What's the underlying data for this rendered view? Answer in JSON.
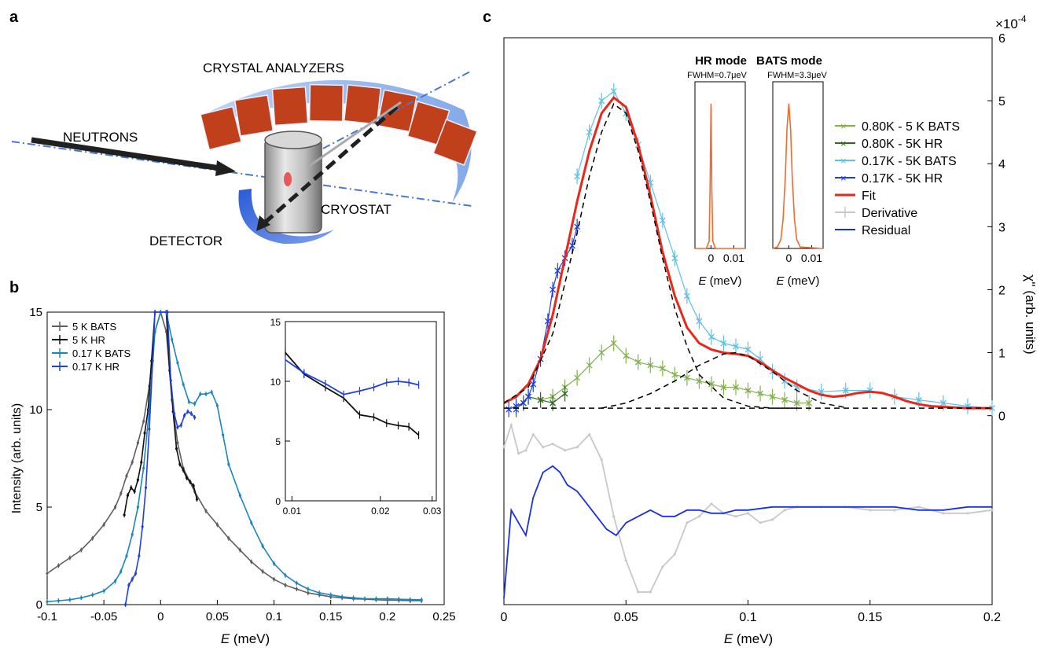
{
  "panel_labels": {
    "a": "a",
    "b": "b",
    "c": "c"
  },
  "schematic": {
    "crystal_analyzers": "CRYSTAL ANALYZERS",
    "neutrons": "NEUTRONS",
    "cryostat": "CRYOSTAT",
    "detector": "DETECTOR"
  },
  "colors": {
    "gray_bats": "#5f5f5f",
    "black_hr": "#111111",
    "blue_bats_b": "#1a86c0",
    "blue_hr": "#1f3fe0",
    "green_bats": "#7fb24a",
    "green_hr": "#2f6b1f",
    "cyan_bats": "#5ec0e6",
    "fit_red": "#e8281a",
    "derivative_gray": "#c8c8c8",
    "residual_blue": "#1a2ee6",
    "orange_res": "#f26a2e",
    "crystal": "#c0401b"
  },
  "chart_data": [
    {
      "id": "b",
      "type": "line",
      "xlabel_italic": "E",
      "xlabel_rest": " (meV)",
      "ylabel": "Intensity (arb. units)",
      "xlim": [
        -0.1,
        0.25
      ],
      "ylim": [
        0,
        15
      ],
      "xticks": [
        -0.1,
        -0.05,
        0,
        0.05,
        0.1,
        0.15,
        0.2,
        0.25
      ],
      "xtick_labels": [
        "-0.1",
        "-0.05",
        "0",
        "0.05",
        "0.1",
        "0.15",
        "0.2",
        "0.25"
      ],
      "yticks": [
        0,
        5,
        10,
        15
      ],
      "ytick_labels": [
        "0",
        "5",
        "10",
        "15"
      ],
      "legend": "top-left",
      "series": [
        {
          "name": "5 K BATS",
          "color": "#5f5f5f",
          "x": [
            -0.1,
            -0.09,
            -0.08,
            -0.07,
            -0.06,
            -0.05,
            -0.04,
            -0.035,
            -0.03,
            -0.025,
            -0.02,
            -0.015,
            -0.01,
            -0.005,
            0.0,
            0.005,
            0.01,
            0.015,
            0.02,
            0.03,
            0.04,
            0.05,
            0.06,
            0.07,
            0.08,
            0.09,
            0.1,
            0.11,
            0.12,
            0.13,
            0.14,
            0.15,
            0.16,
            0.17,
            0.18,
            0.19,
            0.2,
            0.21,
            0.22,
            0.23
          ],
          "y": [
            1.6,
            2.0,
            2.4,
            2.8,
            3.4,
            4.1,
            5.0,
            5.7,
            6.6,
            7.3,
            8.3,
            9.4,
            11.2,
            14.0,
            15,
            14.0,
            10.5,
            8.3,
            7.0,
            5.8,
            4.8,
            4.1,
            3.4,
            2.8,
            2.2,
            1.7,
            1.3,
            1.0,
            0.8,
            0.6,
            0.5,
            0.4,
            0.35,
            0.3,
            0.28,
            0.25,
            0.23,
            0.22,
            0.2,
            0.2
          ]
        },
        {
          "name": "5 K HR",
          "color": "#111111",
          "x": [
            -0.032,
            -0.029,
            -0.026,
            -0.023,
            -0.02,
            -0.017,
            -0.014,
            -0.011,
            -0.008,
            -0.005,
            0.005,
            0.008,
            0.011,
            0.014,
            0.017,
            0.02,
            0.023,
            0.026,
            0.029,
            0.032
          ],
          "y": [
            4.6,
            5.6,
            6.0,
            5.8,
            6.4,
            7.3,
            8.8,
            10.0,
            12.5,
            15,
            15,
            12.0,
            9.9,
            8.0,
            7.2,
            6.9,
            6.5,
            6.3,
            6.1,
            5.4
          ]
        },
        {
          "name": "0.17 K BATS",
          "color": "#1a86c0",
          "x": [
            -0.1,
            -0.09,
            -0.08,
            -0.07,
            -0.06,
            -0.05,
            -0.04,
            -0.035,
            -0.03,
            -0.025,
            -0.02,
            -0.015,
            -0.01,
            -0.005,
            0.0,
            0.005,
            0.01,
            0.015,
            0.02,
            0.025,
            0.03,
            0.035,
            0.04,
            0.045,
            0.05,
            0.055,
            0.06,
            0.07,
            0.08,
            0.09,
            0.1,
            0.11,
            0.12,
            0.13,
            0.14,
            0.15,
            0.16,
            0.17,
            0.18,
            0.19,
            0.2,
            0.21,
            0.22,
            0.23
          ],
          "y": [
            0.15,
            0.2,
            0.25,
            0.35,
            0.5,
            0.7,
            1.2,
            1.7,
            2.5,
            3.6,
            5.0,
            7.0,
            10.0,
            14.0,
            15,
            15,
            13.6,
            12.4,
            11.3,
            10.4,
            10.3,
            10.8,
            10.8,
            10.9,
            10.2,
            8.7,
            7.2,
            5.6,
            4.2,
            3.0,
            2.1,
            1.5,
            1.1,
            0.8,
            0.6,
            0.5,
            0.4,
            0.35,
            0.3,
            0.3,
            0.3,
            0.28,
            0.26,
            0.25
          ]
        },
        {
          "name": "0.17 K HR",
          "color": "#1f3fe0",
          "x": [
            -0.031,
            -0.028,
            -0.025,
            -0.022,
            -0.019,
            -0.016,
            -0.013,
            -0.01,
            -0.007,
            -0.005,
            0.006,
            0.009,
            0.012,
            0.015,
            0.018,
            0.021,
            0.024,
            0.027,
            0.03
          ],
          "y": [
            0.0,
            1.0,
            1.3,
            1.6,
            2.5,
            4.0,
            6.0,
            9.0,
            12.5,
            15,
            15,
            11.5,
            9.8,
            9.1,
            9.2,
            9.7,
            9.9,
            9.8,
            9.6
          ]
        }
      ]
    },
    {
      "id": "b-inset",
      "type": "line",
      "xscale": "log",
      "xlim": [
        0.0095,
        0.031
      ],
      "ylim": [
        0,
        15
      ],
      "xticks": [
        0.01,
        0.02,
        0.03
      ],
      "xtick_labels": [
        "0.01",
        "0.02",
        "0.03"
      ],
      "yticks": [
        0,
        5,
        10,
        15
      ],
      "ytick_labels": [
        "0",
        "5",
        "10",
        "15"
      ],
      "series": [
        {
          "color": "#111111",
          "x": [
            0.0095,
            0.011,
            0.013,
            0.015,
            0.017,
            0.019,
            0.021,
            0.023,
            0.025,
            0.027
          ],
          "y": [
            12.4,
            10.6,
            9.5,
            8.6,
            7.2,
            7.0,
            6.5,
            6.3,
            6.2,
            5.5
          ]
        },
        {
          "color": "#1f3fe0",
          "x": [
            0.0095,
            0.011,
            0.013,
            0.015,
            0.017,
            0.019,
            0.021,
            0.023,
            0.025,
            0.027
          ],
          "y": [
            11.8,
            10.7,
            9.8,
            8.9,
            9.2,
            9.5,
            9.9,
            10.0,
            9.9,
            9.7
          ]
        }
      ]
    },
    {
      "id": "c",
      "type": "line",
      "xlabel_italic": "E",
      "xlabel_rest": " (meV)",
      "ylabel": "χ'' (arb. units)",
      "exponent": "×10",
      "exponent_power": "-4",
      "xlim": [
        0,
        0.2
      ],
      "ylim": [
        -3,
        6
      ],
      "xticks": [
        0,
        0.05,
        0.1,
        0.15,
        0.2
      ],
      "xtick_labels": [
        "0",
        "0.05",
        "0.1",
        "0.15",
        "0.2"
      ],
      "yticks": [
        0,
        1,
        2,
        3,
        4,
        5,
        6
      ],
      "ytick_labels": [
        "0",
        "1",
        "2",
        "3",
        "4",
        "5",
        "6"
      ],
      "legend": "top-right",
      "legend_entries": [
        "0.80K - 5 K BATS",
        "0.80K - 5K HR",
        "0.17K - 5K BATS",
        "0.17K - 5K HR",
        "Fit",
        "Derivative",
        "Residual"
      ],
      "series": [
        {
          "name": "0.80K - 5 K BATS",
          "color": "#7fb24a",
          "x": [
            0.015,
            0.02,
            0.025,
            0.03,
            0.035,
            0.04,
            0.045,
            0.05,
            0.055,
            0.06,
            0.065,
            0.07,
            0.075,
            0.08,
            0.085,
            0.09,
            0.095,
            0.1,
            0.105,
            0.11,
            0.115,
            0.12,
            0.125
          ],
          "y": [
            0.25,
            0.3,
            0.45,
            0.6,
            0.8,
            1.0,
            1.15,
            0.95,
            0.85,
            0.8,
            0.75,
            0.65,
            0.6,
            0.55,
            0.5,
            0.45,
            0.45,
            0.4,
            0.35,
            0.3,
            0.25,
            0.2,
            0.2
          ]
        },
        {
          "name": "0.80K - 5K HR",
          "color": "#2f6b1f",
          "x": [
            0.005,
            0.01,
            0.015,
            0.02,
            0.025
          ],
          "y": [
            0.1,
            0.3,
            0.25,
            0.2,
            0.35
          ]
        },
        {
          "name": "0.17K - 5K BATS",
          "color": "#5ec0e6",
          "x": [
            0.03,
            0.035,
            0.04,
            0.045,
            0.05,
            0.055,
            0.06,
            0.065,
            0.07,
            0.075,
            0.08,
            0.085,
            0.09,
            0.095,
            0.1,
            0.105,
            0.11,
            0.115,
            0.12,
            0.13,
            0.14,
            0.15,
            0.16,
            0.17,
            0.18,
            0.19,
            0.2
          ],
          "y": [
            3.8,
            4.5,
            5.0,
            5.15,
            4.8,
            4.3,
            3.7,
            3.1,
            2.5,
            1.9,
            1.5,
            1.25,
            1.15,
            1.1,
            1.05,
            0.9,
            0.7,
            0.55,
            0.45,
            0.38,
            0.4,
            0.4,
            0.3,
            0.25,
            0.2,
            0.15,
            0.12
          ]
        },
        {
          "name": "0.17K - 5K HR",
          "color": "#1f3fe0",
          "x": [
            0.002,
            0.005,
            0.008,
            0.01,
            0.012,
            0.015,
            0.018,
            0.02,
            0.022,
            0.025,
            0.028,
            0.03
          ],
          "y": [
            0.1,
            0.15,
            0.2,
            0.3,
            0.5,
            0.9,
            1.5,
            2.0,
            2.3,
            2.5,
            2.7,
            3.0
          ]
        },
        {
          "name": "Fit",
          "color": "#e8281a",
          "x": [
            0,
            0.005,
            0.01,
            0.015,
            0.02,
            0.025,
            0.03,
            0.035,
            0.04,
            0.045,
            0.05,
            0.055,
            0.06,
            0.065,
            0.07,
            0.075,
            0.08,
            0.085,
            0.09,
            0.095,
            0.1,
            0.105,
            0.11,
            0.115,
            0.12,
            0.125,
            0.13,
            0.135,
            0.14,
            0.145,
            0.15,
            0.155,
            0.16,
            0.165,
            0.17,
            0.175,
            0.18,
            0.19,
            0.2
          ],
          "y": [
            0.2,
            0.3,
            0.5,
            0.9,
            1.6,
            2.5,
            3.4,
            4.2,
            4.8,
            5.05,
            4.9,
            4.3,
            3.5,
            2.6,
            1.9,
            1.4,
            1.15,
            1.05,
            1.0,
            0.98,
            0.95,
            0.85,
            0.72,
            0.6,
            0.5,
            0.4,
            0.33,
            0.3,
            0.32,
            0.36,
            0.38,
            0.36,
            0.3,
            0.23,
            0.18,
            0.15,
            0.14,
            0.12,
            0.12
          ]
        },
        {
          "name": "peak-1",
          "color": "#000000",
          "dashed": true,
          "x": [
            0,
            0.01,
            0.02,
            0.03,
            0.035,
            0.04,
            0.045,
            0.05,
            0.055,
            0.06,
            0.065,
            0.07,
            0.075,
            0.08,
            0.09,
            0.1,
            0.11,
            0.12
          ],
          "y": [
            0.2,
            0.45,
            1.3,
            2.9,
            3.8,
            4.5,
            4.95,
            4.8,
            4.2,
            3.4,
            2.5,
            1.7,
            1.1,
            0.65,
            0.28,
            0.15,
            0.12,
            0.12
          ]
        },
        {
          "name": "peak-2",
          "color": "#000000",
          "dashed": true,
          "x": [
            0.04,
            0.05,
            0.06,
            0.07,
            0.08,
            0.09,
            0.095,
            0.1,
            0.11,
            0.12,
            0.13,
            0.14
          ],
          "y": [
            0.12,
            0.2,
            0.35,
            0.55,
            0.8,
            0.98,
            1.0,
            0.95,
            0.7,
            0.4,
            0.2,
            0.13
          ]
        },
        {
          "name": "baseline",
          "color": "#000000",
          "dashed": true,
          "x": [
            0,
            0.2
          ],
          "y": [
            0.12,
            0.12
          ]
        },
        {
          "name": "Derivative",
          "color": "#c8c8c8",
          "x": [
            0.0,
            0.003,
            0.006,
            0.009,
            0.012,
            0.016,
            0.02,
            0.025,
            0.03,
            0.035,
            0.04,
            0.045,
            0.05,
            0.055,
            0.06,
            0.065,
            0.07,
            0.075,
            0.08,
            0.085,
            0.09,
            0.095,
            0.1,
            0.105,
            0.11,
            0.115,
            0.12,
            0.13,
            0.14,
            0.15,
            0.16,
            0.17,
            0.18,
            0.19,
            0.2
          ],
          "y": [
            -0.5,
            -0.15,
            -0.6,
            -0.55,
            -0.3,
            -0.5,
            -0.45,
            -0.55,
            -0.5,
            -0.3,
            -0.7,
            -1.6,
            -2.3,
            -2.8,
            -2.8,
            -2.4,
            -2.2,
            -1.7,
            -1.6,
            -1.4,
            -1.55,
            -1.6,
            -1.55,
            -1.7,
            -1.65,
            -1.5,
            -1.45,
            -1.45,
            -1.45,
            -1.5,
            -1.5,
            -1.45,
            -1.55,
            -1.55,
            -1.5
          ]
        },
        {
          "name": "Residual",
          "color": "#1a2ee6",
          "x": [
            0.0,
            0.003,
            0.006,
            0.009,
            0.012,
            0.016,
            0.02,
            0.023,
            0.026,
            0.03,
            0.034,
            0.038,
            0.042,
            0.046,
            0.05,
            0.055,
            0.06,
            0.065,
            0.07,
            0.075,
            0.08,
            0.085,
            0.09,
            0.095,
            0.1,
            0.11,
            0.12,
            0.13,
            0.14,
            0.15,
            0.16,
            0.17,
            0.18,
            0.19,
            0.2
          ],
          "y": [
            -2.9,
            -1.5,
            -1.7,
            -1.9,
            -1.3,
            -0.9,
            -0.8,
            -0.9,
            -1.1,
            -1.2,
            -1.4,
            -1.6,
            -1.8,
            -1.9,
            -1.7,
            -1.6,
            -1.5,
            -1.6,
            -1.6,
            -1.5,
            -1.5,
            -1.55,
            -1.55,
            -1.5,
            -1.5,
            -1.45,
            -1.45,
            -1.45,
            -1.45,
            -1.45,
            -1.45,
            -1.5,
            -1.5,
            -1.45,
            -1.45
          ]
        }
      ]
    },
    {
      "id": "c-inset-hr",
      "type": "line",
      "title": "HR mode",
      "subtitle": "FWHM=0.7μeV",
      "xlabel_italic": "E",
      "xlabel_rest": " (meV)",
      "xlim": [
        -0.007,
        0.015
      ],
      "xticks": [
        0,
        0.01
      ],
      "xtick_labels": [
        "0",
        "0.01"
      ],
      "ylim": [
        0,
        1.15
      ],
      "series": [
        {
          "color": "#f26a2e",
          "x": [
            -0.007,
            -0.002,
            -0.0008,
            -0.0004,
            0.0,
            0.0004,
            0.0008,
            0.002,
            0.015
          ],
          "y": [
            0,
            0.0,
            0.05,
            0.4,
            1.0,
            0.4,
            0.05,
            0.0,
            0
          ]
        }
      ]
    },
    {
      "id": "c-inset-bats",
      "type": "line",
      "title": "BATS mode",
      "subtitle": "FWHM=3.3μeV",
      "xlabel_italic": "E",
      "xlabel_rest": " (meV)",
      "xlim": [
        -0.007,
        0.015
      ],
      "xticks": [
        0,
        0.01
      ],
      "xtick_labels": [
        "0",
        "0.01"
      ],
      "ylim": [
        0,
        1.15
      ],
      "series": [
        {
          "color": "#f26a2e",
          "x": [
            -0.007,
            -0.005,
            -0.0035,
            -0.0025,
            -0.0015,
            -0.0008,
            0.0,
            0.0008,
            0.0015,
            0.0025,
            0.0035,
            0.005,
            0.015
          ],
          "y": [
            0,
            0.01,
            0.06,
            0.2,
            0.5,
            0.82,
            1.0,
            0.82,
            0.5,
            0.2,
            0.06,
            0.01,
            0
          ]
        }
      ]
    }
  ]
}
